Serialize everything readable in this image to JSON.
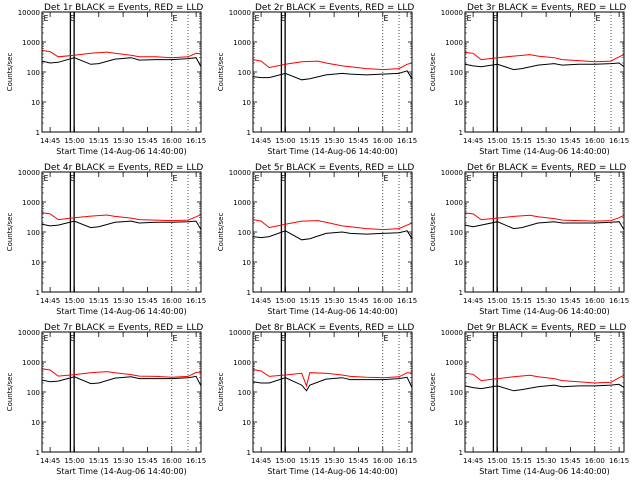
{
  "colors": {
    "events": "#000000",
    "lld": "#ff0000",
    "axis": "#000000",
    "background": "#ffffff"
  },
  "shared": {
    "ylabel": "Counts/sec",
    "xlabel": "Start Time (14-Aug-06 14:40:00)",
    "xticks": [
      "14:45",
      "15:00",
      "15:15",
      "15:30",
      "15:45",
      "16:00",
      "16:15"
    ],
    "yticks": [
      "1",
      "10",
      "100",
      "1000",
      "10000"
    ],
    "marker": "E"
  },
  "chart_data": [
    {
      "type": "line",
      "title": "Det 1r BLACK = Events, RED = LLD",
      "y_scale": "log",
      "ylim": [
        1,
        10000
      ],
      "xlim": [
        "14:40",
        "16:18"
      ],
      "series": [
        {
          "name": "Events",
          "color": "#000000",
          "x": [
            0,
            5,
            10,
            20,
            30,
            35,
            45,
            55,
            60,
            70,
            80,
            90,
            95,
            98
          ],
          "y": [
            230,
            200,
            210,
            300,
            180,
            190,
            270,
            300,
            250,
            260,
            260,
            280,
            300,
            150
          ]
        },
        {
          "name": "LLD",
          "color": "#ff0000",
          "x": [
            0,
            5,
            10,
            20,
            30,
            40,
            45,
            55,
            60,
            70,
            80,
            90,
            95,
            98
          ],
          "y": [
            520,
            480,
            320,
            360,
            420,
            460,
            420,
            360,
            320,
            320,
            300,
            320,
            420,
            400
          ]
        }
      ]
    },
    {
      "type": "line",
      "title": "Det 2r BLACK = Events, RED = LLD",
      "y_scale": "log",
      "ylim": [
        1,
        10000
      ],
      "xlim": [
        "14:40",
        "16:18"
      ],
      "series": [
        {
          "name": "Events",
          "color": "#000000",
          "x": [
            0,
            5,
            10,
            20,
            30,
            35,
            45,
            55,
            60,
            70,
            80,
            90,
            95,
            98
          ],
          "y": [
            70,
            65,
            65,
            90,
            55,
            60,
            80,
            90,
            85,
            80,
            85,
            90,
            110,
            60
          ]
        },
        {
          "name": "LLD",
          "color": "#ff0000",
          "x": [
            0,
            5,
            10,
            20,
            30,
            40,
            45,
            55,
            60,
            70,
            80,
            90,
            95,
            98
          ],
          "y": [
            260,
            230,
            140,
            180,
            220,
            230,
            200,
            160,
            150,
            130,
            120,
            130,
            180,
            200
          ]
        }
      ]
    },
    {
      "type": "line",
      "title": "Det 3r BLACK = Events, RED = LLD",
      "y_scale": "log",
      "ylim": [
        1,
        10000
      ],
      "xlim": [
        "14:40",
        "16:18"
      ],
      "series": [
        {
          "name": "Events",
          "color": "#000000",
          "x": [
            0,
            5,
            10,
            20,
            30,
            35,
            45,
            55,
            60,
            70,
            80,
            90,
            95,
            98
          ],
          "y": [
            180,
            160,
            150,
            180,
            120,
            130,
            170,
            190,
            170,
            180,
            180,
            190,
            200,
            150
          ]
        },
        {
          "name": "LLD",
          "color": "#ff0000",
          "x": [
            0,
            5,
            10,
            20,
            30,
            40,
            45,
            55,
            60,
            70,
            80,
            90,
            95,
            98
          ],
          "y": [
            450,
            420,
            260,
            300,
            340,
            380,
            340,
            300,
            260,
            240,
            220,
            230,
            320,
            380
          ]
        }
      ]
    },
    {
      "type": "line",
      "title": "Det 4r BLACK = Events, RED = LLD",
      "y_scale": "log",
      "ylim": [
        1,
        10000
      ],
      "xlim": [
        "14:40",
        "16:18"
      ],
      "series": [
        {
          "name": "Events",
          "color": "#000000",
          "x": [
            0,
            5,
            10,
            20,
            30,
            35,
            45,
            55,
            60,
            70,
            80,
            90,
            95,
            98
          ],
          "y": [
            180,
            160,
            170,
            230,
            140,
            150,
            210,
            230,
            200,
            210,
            210,
            220,
            230,
            120
          ]
        },
        {
          "name": "LLD",
          "color": "#ff0000",
          "x": [
            0,
            5,
            10,
            20,
            30,
            40,
            45,
            55,
            60,
            70,
            80,
            90,
            95,
            98
          ],
          "y": [
            440,
            400,
            260,
            300,
            340,
            370,
            330,
            290,
            260,
            250,
            240,
            250,
            320,
            380
          ]
        }
      ]
    },
    {
      "type": "line",
      "title": "Det 5r BLACK = Events, RED = LLD",
      "y_scale": "log",
      "ylim": [
        1,
        10000
      ],
      "xlim": [
        "14:40",
        "16:18"
      ],
      "series": [
        {
          "name": "Events",
          "color": "#000000",
          "x": [
            0,
            5,
            10,
            20,
            30,
            35,
            45,
            55,
            60,
            70,
            80,
            90,
            95,
            98
          ],
          "y": [
            70,
            65,
            70,
            110,
            55,
            60,
            90,
            100,
            90,
            85,
            90,
            95,
            110,
            60
          ]
        },
        {
          "name": "LLD",
          "color": "#ff0000",
          "x": [
            0,
            5,
            10,
            20,
            30,
            40,
            45,
            55,
            60,
            70,
            80,
            90,
            95,
            98
          ],
          "y": [
            260,
            230,
            140,
            180,
            230,
            240,
            210,
            160,
            150,
            130,
            120,
            130,
            170,
            200
          ]
        }
      ]
    },
    {
      "type": "line",
      "title": "Det 6r BLACK = Events, RED = LLD",
      "y_scale": "log",
      "ylim": [
        1,
        10000
      ],
      "xlim": [
        "14:40",
        "16:18"
      ],
      "series": [
        {
          "name": "Events",
          "color": "#000000",
          "x": [
            0,
            5,
            10,
            20,
            30,
            35,
            45,
            55,
            60,
            70,
            80,
            90,
            95,
            98
          ],
          "y": [
            170,
            150,
            170,
            220,
            130,
            140,
            200,
            220,
            200,
            200,
            200,
            210,
            220,
            120
          ]
        },
        {
          "name": "LLD",
          "color": "#ff0000",
          "x": [
            0,
            5,
            10,
            20,
            30,
            40,
            45,
            55,
            60,
            70,
            80,
            90,
            95,
            98
          ],
          "y": [
            430,
            400,
            260,
            290,
            330,
            360,
            320,
            280,
            250,
            240,
            230,
            240,
            300,
            360
          ]
        }
      ]
    },
    {
      "type": "line",
      "title": "Det 7r BLACK = Events, RED = LLD",
      "y_scale": "log",
      "ylim": [
        1,
        10000
      ],
      "xlim": [
        "14:40",
        "16:18"
      ],
      "series": [
        {
          "name": "Events",
          "color": "#000000",
          "x": [
            0,
            5,
            10,
            20,
            30,
            35,
            45,
            55,
            60,
            70,
            80,
            90,
            95,
            98
          ],
          "y": [
            250,
            220,
            230,
            320,
            190,
            200,
            290,
            320,
            280,
            280,
            280,
            300,
            330,
            160
          ]
        },
        {
          "name": "LLD",
          "color": "#ff0000",
          "x": [
            0,
            5,
            10,
            20,
            30,
            40,
            45,
            55,
            60,
            70,
            80,
            90,
            95,
            98
          ],
          "y": [
            600,
            540,
            340,
            380,
            440,
            480,
            440,
            380,
            340,
            330,
            310,
            330,
            450,
            460
          ]
        }
      ]
    },
    {
      "type": "line",
      "title": "Det 8r BLACK = Events, RED = LLD",
      "y_scale": "log",
      "ylim": [
        1,
        10000
      ],
      "xlim": [
        "14:40",
        "16:18"
      ],
      "series": [
        {
          "name": "Events",
          "color": "#000000",
          "x": [
            0,
            5,
            10,
            20,
            30,
            33,
            35,
            45,
            55,
            60,
            70,
            80,
            90,
            95,
            98
          ],
          "y": [
            220,
            200,
            200,
            300,
            170,
            110,
            170,
            270,
            300,
            260,
            260,
            260,
            280,
            310,
            140
          ]
        },
        {
          "name": "LLD",
          "color": "#ff0000",
          "x": [
            0,
            5,
            10,
            20,
            30,
            33,
            35,
            45,
            55,
            60,
            70,
            80,
            90,
            95,
            98
          ],
          "y": [
            560,
            500,
            330,
            370,
            420,
            160,
            440,
            420,
            370,
            330,
            310,
            300,
            320,
            440,
            430
          ]
        }
      ]
    },
    {
      "type": "line",
      "title": "Det 9r BLACK = Events, RED = LLD",
      "y_scale": "log",
      "ylim": [
        1,
        10000
      ],
      "xlim": [
        "14:40",
        "16:18"
      ],
      "series": [
        {
          "name": "Events",
          "color": "#000000",
          "x": [
            0,
            5,
            10,
            20,
            30,
            35,
            45,
            55,
            60,
            70,
            80,
            90,
            95,
            98
          ],
          "y": [
            160,
            140,
            130,
            160,
            110,
            120,
            150,
            170,
            150,
            160,
            160,
            170,
            180,
            140
          ]
        },
        {
          "name": "LLD",
          "color": "#ff0000",
          "x": [
            0,
            5,
            10,
            20,
            30,
            40,
            45,
            55,
            60,
            70,
            80,
            90,
            95,
            98
          ],
          "y": [
            420,
            390,
            240,
            280,
            320,
            360,
            320,
            280,
            240,
            220,
            200,
            210,
            300,
            360
          ]
        }
      ]
    }
  ]
}
